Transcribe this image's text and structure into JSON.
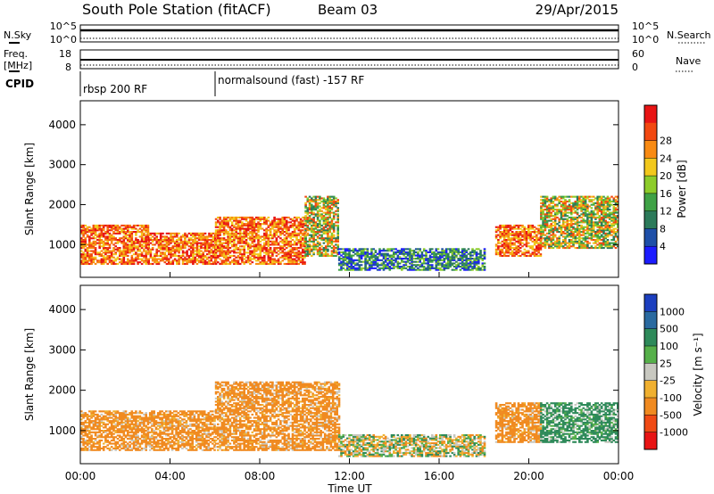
{
  "header": {
    "title": "South Pole Station (fitACF)",
    "beam": "Beam 03",
    "date": "29/Apr/2015"
  },
  "top_panels": {
    "nsky_label": "N.Sky",
    "nsearch_label": "N.Search",
    "noise_ticks": [
      "10^5",
      "10^0"
    ],
    "freq_label_line1": "Freq.",
    "freq_label_line2": "[MHz]",
    "freq_ticks_left": [
      "18",
      "8"
    ],
    "nave_label": "Nave",
    "nave_ticks_right": [
      "60",
      "0"
    ],
    "cpid_label": "CPID",
    "cpid_segments": [
      {
        "label": "rbsp 200 RF",
        "start_hour": 0,
        "end_hour": 6
      },
      {
        "label": "normalsound (fast) -157 RF",
        "start_hour": 6,
        "end_hour": 24
      }
    ]
  },
  "power_scale": {
    "title": "Power [dB]",
    "ticks": [
      "4",
      "8",
      "12",
      "16",
      "20",
      "24",
      "28"
    ],
    "colors": [
      "#1c1cff",
      "#1e4fa8",
      "#2c7a5a",
      "#3fa246",
      "#8dcc2a",
      "#f2c81c",
      "#f88a12",
      "#f24810",
      "#e81414"
    ]
  },
  "velocity_scale": {
    "title": "Velocity [m s⁻¹]",
    "ticks": [
      "1000",
      "500",
      "100",
      "25",
      "-25",
      "-100",
      "-500",
      "-1000"
    ],
    "colors": [
      "#1c3fbf",
      "#2a6aa0",
      "#2e8a5a",
      "#56b04a",
      "#c8c8c0",
      "#f0b030",
      "#f08a20",
      "#f04a14",
      "#e81414"
    ]
  },
  "chart_data": [
    {
      "type": "heatmap",
      "quantity": "Power",
      "ylabel": "Slant Range [km]",
      "ylim": [
        180,
        4600
      ],
      "yticks": [
        "1000",
        "2000",
        "3000",
        "4000"
      ],
      "xlim": [
        0,
        24
      ],
      "echo_bands": [
        {
          "t": [
            0,
            3
          ],
          "range": [
            500,
            1500
          ],
          "level": "strong"
        },
        {
          "t": [
            3,
            6
          ],
          "range": [
            500,
            1300
          ],
          "level": "strong"
        },
        {
          "t": [
            6,
            10
          ],
          "range": [
            500,
            1700
          ],
          "level": "strong"
        },
        {
          "t": [
            10,
            11.5
          ],
          "range": [
            700,
            2200
          ],
          "level": "medium"
        },
        {
          "t": [
            11.5,
            18
          ],
          "range": [
            350,
            900
          ],
          "level": "weak"
        },
        {
          "t": [
            18.5,
            20.5
          ],
          "range": [
            700,
            1500
          ],
          "level": "strong"
        },
        {
          "t": [
            20.5,
            24
          ],
          "range": [
            900,
            2200
          ],
          "level": "medium"
        }
      ]
    },
    {
      "type": "heatmap",
      "quantity": "Velocity",
      "ylabel": "Slant Range [km]",
      "xlabel": "Time UT",
      "ylim": [
        180,
        4600
      ],
      "yticks": [
        "1000",
        "2000",
        "3000",
        "4000"
      ],
      "xticks": [
        "00:00",
        "04:00",
        "08:00",
        "12:00",
        "16:00",
        "20:00",
        "00:00"
      ],
      "xlim": [
        0,
        24
      ],
      "echo_bands": [
        {
          "t": [
            0,
            6
          ],
          "range": [
            500,
            1500
          ],
          "velocity": "-100"
        },
        {
          "t": [
            6,
            11.5
          ],
          "range": [
            500,
            2200
          ],
          "velocity": "-100"
        },
        {
          "t": [
            11.5,
            18
          ],
          "range": [
            350,
            900
          ],
          "velocity": "mixed"
        },
        {
          "t": [
            18.5,
            20.5
          ],
          "range": [
            700,
            1700
          ],
          "velocity": "-100"
        },
        {
          "t": [
            20.5,
            24
          ],
          "range": [
            700,
            1700
          ],
          "velocity": "100"
        }
      ]
    }
  ]
}
